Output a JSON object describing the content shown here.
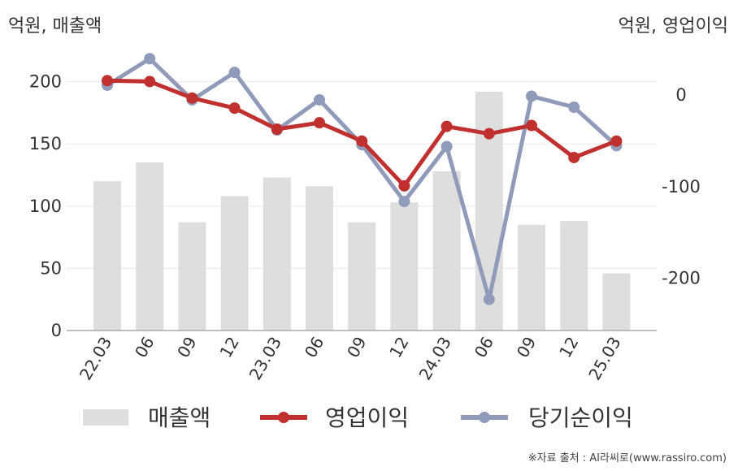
{
  "units": {
    "left": "억원, 매출액",
    "right": "억원, 영업이익"
  },
  "source": "※자료 출처 : AI라씨로(www.rassiro.com)",
  "colors": {
    "bar": "#dedede",
    "op": "#c0302f",
    "net": "#8f9bb8",
    "grid": "#e9e9e9",
    "axis": "#aaaaaa"
  },
  "chart_data": {
    "type": "bar",
    "categories": [
      "22.03",
      "06",
      "09",
      "12",
      "23.03",
      "06",
      "09",
      "12",
      "24.03",
      "06",
      "09",
      "12",
      "25.03"
    ],
    "y_left": {
      "ticks": [
        0,
        50,
        100,
        150,
        200
      ],
      "range": [
        0,
        220
      ]
    },
    "y_right": {
      "ticks": [
        0,
        -100,
        -200
      ],
      "range": [
        -258,
        41
      ]
    },
    "grid": true,
    "legend_position": "bottom",
    "series": [
      {
        "name": "매출액",
        "type": "bar",
        "axis": "left",
        "values": [
          120,
          135,
          87,
          108,
          123,
          116,
          87,
          103,
          128,
          192,
          85,
          88,
          46
        ]
      },
      {
        "name": "영업이익",
        "type": "line",
        "axis": "right",
        "values": [
          15,
          14,
          -4,
          -15,
          -38,
          -31,
          -51,
          -100,
          -35,
          -43,
          -34,
          -69,
          -51
        ]
      },
      {
        "name": "당기순이익",
        "type": "line",
        "axis": "right",
        "values": [
          10,
          39,
          -6,
          24,
          -39,
          -6,
          -55,
          -117,
          -57,
          -224,
          -2,
          -14,
          -56
        ]
      }
    ]
  }
}
